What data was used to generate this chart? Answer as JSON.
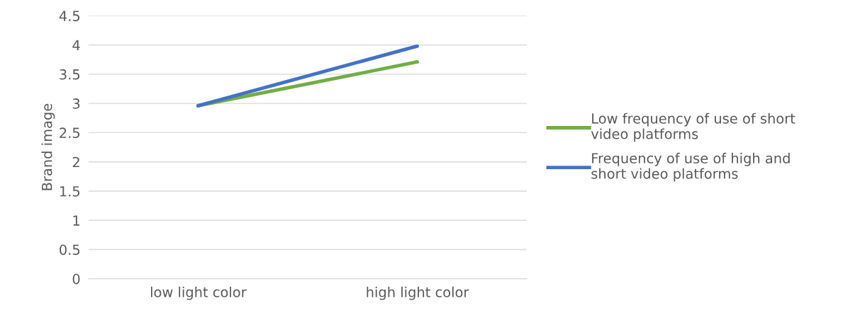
{
  "chart_data": {
    "type": "line",
    "ylabel": "Brand image",
    "categories": [
      "low light color",
      "high light color"
    ],
    "series": [
      {
        "name": "Low frequency of use of short video platforms",
        "color": "#70ad47",
        "values": [
          2.96,
          3.71
        ]
      },
      {
        "name": "Frequency of use of high and short video platforms",
        "color": "#4472c4",
        "values": [
          2.96,
          3.98
        ]
      }
    ],
    "ylim": [
      0,
      4.5
    ],
    "yticks": [
      0,
      0.5,
      1,
      1.5,
      2,
      2.5,
      3,
      3.5,
      4,
      4.5
    ],
    "grid": "y",
    "legend": "right",
    "marker": "none",
    "line_style": "solid"
  }
}
